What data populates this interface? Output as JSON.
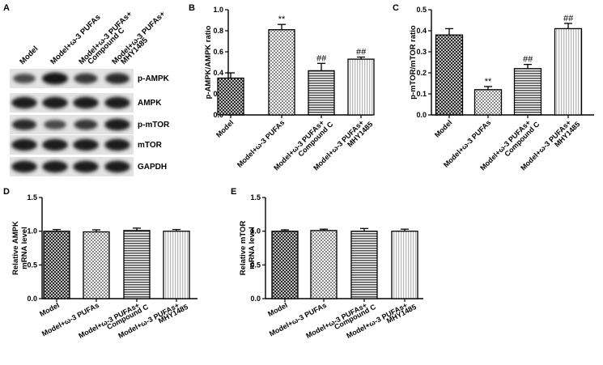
{
  "figure": {
    "panels": [
      "A",
      "B",
      "C",
      "D",
      "E"
    ],
    "blot": {
      "lane_labels": [
        "Model",
        "Model+ω-3 PUFAs",
        "Model+ω-3 PUFAs+ Compound C",
        "Model+ω-3 PUFAs+ MHY1485"
      ],
      "lane_label_lines": [
        [
          "Model"
        ],
        [
          "Model+ω-3 PUFAs"
        ],
        [
          "Model+ω-3 PUFAs+",
          "Compound C"
        ],
        [
          "Model+ω-3 PUFAs+",
          "MHY1485"
        ]
      ],
      "band_labels": [
        "p-AMPK",
        "AMPK",
        "p-mTOR",
        "mTOR",
        "GAPDH"
      ],
      "band_intensity": [
        [
          0.55,
          1.0,
          0.7,
          0.8
        ],
        [
          0.95,
          0.95,
          0.95,
          0.95
        ],
        [
          0.8,
          0.55,
          0.7,
          0.95
        ],
        [
          0.95,
          0.95,
          0.95,
          0.95
        ],
        [
          0.95,
          0.95,
          0.95,
          0.95
        ]
      ]
    }
  },
  "chart_data": [
    {
      "panel": "B",
      "type": "bar",
      "categories": [
        "Model",
        "Model+ω-3 PUFAs",
        "Model+ω-3 PUFAs+ Compound C",
        "Model+ω-3 PUFAs+ MHY1485"
      ],
      "category_lines": [
        [
          "Model"
        ],
        [
          "Model+ω-3 PUFAs"
        ],
        [
          "Model+ω-3 PUFAs+",
          "Compound C"
        ],
        [
          "Model+ω-3 PUFAs+",
          "MHY1485"
        ]
      ],
      "values": [
        0.35,
        0.81,
        0.42,
        0.53
      ],
      "errors": [
        0.05,
        0.05,
        0.07,
        0.02
      ],
      "annotations": [
        "",
        "**",
        "##",
        "##"
      ],
      "ylabel": "p-AMPK/AMPK ratio",
      "ylim": [
        0,
        1.0
      ],
      "yticks": [
        0.0,
        0.2,
        0.4,
        0.6,
        0.8,
        1.0
      ],
      "ytick_labels": [
        "0.0",
        "0.2",
        "0.4",
        "0.6",
        "0.8",
        "1.0"
      ],
      "patterns": [
        "crosshatch",
        "checker",
        "hlines",
        "vlines"
      ]
    },
    {
      "panel": "C",
      "type": "bar",
      "categories": [
        "Model",
        "Model+ω-3 PUFAs",
        "Model+ω-3 PUFAs+ Compound C",
        "Model+ω-3 PUFAs+ MHY1485"
      ],
      "category_lines": [
        [
          "Model"
        ],
        [
          "Model+ω-3 PUFAs"
        ],
        [
          "Model+ω-3 PUFAs+",
          "Compound C"
        ],
        [
          "Model+ω-3 PUFAs+",
          "MHY1485"
        ]
      ],
      "values": [
        0.38,
        0.12,
        0.22,
        0.41
      ],
      "errors": [
        0.03,
        0.015,
        0.02,
        0.025
      ],
      "annotations": [
        "",
        "**",
        "##",
        "##"
      ],
      "ylabel": "p-mTOR/mTOR ratio",
      "ylim": [
        0,
        0.5
      ],
      "yticks": [
        0.0,
        0.1,
        0.2,
        0.3,
        0.4,
        0.5
      ],
      "ytick_labels": [
        "0.0",
        "0.1",
        "0.2",
        "0.3",
        "0.4",
        "0.5"
      ],
      "patterns": [
        "crosshatch",
        "checker",
        "hlines",
        "vlines"
      ]
    },
    {
      "panel": "D",
      "type": "bar",
      "categories": [
        "Model",
        "Model+ω-3 PUFAs",
        "Model+ω-3 PUFAs+ Compound C",
        "Model+ω-3 PUFAs+ MHY1485"
      ],
      "category_lines": [
        [
          "Model"
        ],
        [
          "Model+ω-3 PUFAs"
        ],
        [
          "Model+ω-3 PUFAs+",
          "Compound C"
        ],
        [
          "Model+ω-3 PUFAs+",
          "MHY1485"
        ]
      ],
      "values": [
        1.0,
        0.99,
        1.01,
        1.0
      ],
      "errors": [
        0.025,
        0.03,
        0.035,
        0.025
      ],
      "annotations": [
        "",
        "",
        "",
        ""
      ],
      "ylabel": "Relative AMPK",
      "ylabel2": "mRNA level",
      "ylim": [
        0,
        1.5
      ],
      "yticks": [
        0.0,
        0.5,
        1.0,
        1.5
      ],
      "ytick_labels": [
        "0.0",
        "0.5",
        "1.0",
        "1.5"
      ],
      "patterns": [
        "crosshatch",
        "checker",
        "hlines",
        "vlines"
      ]
    },
    {
      "panel": "E",
      "type": "bar",
      "categories": [
        "Model",
        "Model+ω-3 PUFAs",
        "Model+ω-3 PUFAs+ Compound C",
        "Model+ω-3 PUFAs+ MHY1485"
      ],
      "category_lines": [
        [
          "Model"
        ],
        [
          "Model+ω-3 PUFAs"
        ],
        [
          "Model+ω-3 PUFAs+",
          "Compound C"
        ],
        [
          "Model+ω-3 PUFAs+",
          "MHY1485"
        ]
      ],
      "values": [
        1.0,
        1.01,
        1.0,
        1.0
      ],
      "errors": [
        0.02,
        0.02,
        0.04,
        0.03
      ],
      "annotations": [
        "",
        "",
        "",
        ""
      ],
      "ylabel": "Relative mTOR",
      "ylabel2": "mRNA level",
      "ylim": [
        0,
        1.5
      ],
      "yticks": [
        0.0,
        0.5,
        1.0,
        1.5
      ],
      "ytick_labels": [
        "0.0",
        "0.5",
        "1.0",
        "1.5"
      ],
      "patterns": [
        "crosshatch",
        "checker",
        "hlines",
        "vlines"
      ]
    }
  ]
}
